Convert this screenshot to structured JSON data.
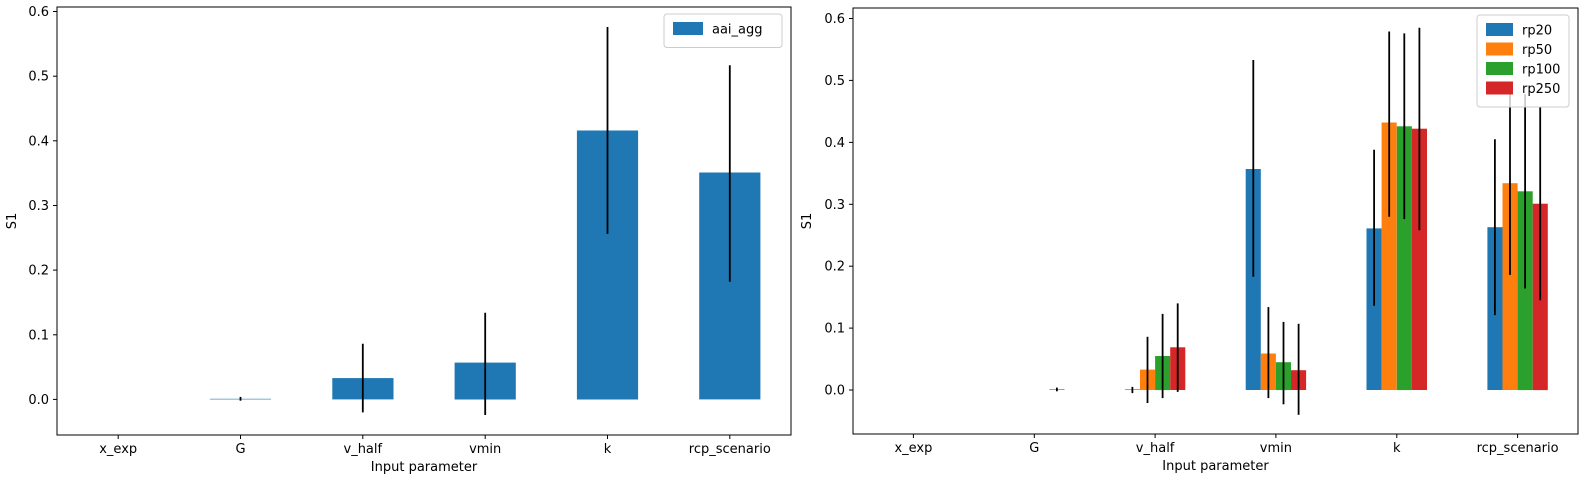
{
  "figure": {
    "background": "#ffffff"
  },
  "chart_data": [
    {
      "type": "bar",
      "title": "",
      "xlabel": "Input parameter",
      "ylabel": "S1",
      "categories": [
        "x_exp",
        "G",
        "v_half",
        "vmin",
        "k",
        "rcp_scenario"
      ],
      "yticks": [
        "0.0",
        "0.1",
        "0.2",
        "0.3",
        "0.4",
        "0.5",
        "0.6"
      ],
      "ylim": [
        -0.055,
        0.607
      ],
      "grid": false,
      "legend_position": "upper right",
      "error_bar_color": "#000000",
      "series": [
        {
          "name": "aai_agg",
          "color": "#1f77b4",
          "values": [
            0.0,
            0.001,
            0.033,
            0.057,
            0.416,
            0.351
          ],
          "err_low": [
            0.0,
            -0.002,
            -0.02,
            -0.024,
            0.256,
            0.182
          ],
          "err_high": [
            0.0,
            0.004,
            0.086,
            0.134,
            0.576,
            0.517
          ]
        }
      ]
    },
    {
      "type": "bar",
      "title": "",
      "xlabel": "Input parameter",
      "ylabel": "S1",
      "categories": [
        "x_exp",
        "G",
        "v_half",
        "vmin",
        "k",
        "rcp_scenario"
      ],
      "yticks": [
        "0.0",
        "0.1",
        "0.2",
        "0.3",
        "0.4",
        "0.5",
        "0.6"
      ],
      "ylim": [
        -0.071,
        0.617
      ],
      "grid": false,
      "legend_position": "upper right",
      "error_bar_color": "#000000",
      "series": [
        {
          "name": "rp20",
          "color": "#1f77b4",
          "values": [
            0.0,
            0.0,
            0.001,
            0.357,
            0.261,
            0.263
          ],
          "err_low": [
            0.0,
            0.0,
            -0.005,
            0.183,
            0.136,
            0.121
          ],
          "err_high": [
            0.0,
            0.0,
            0.005,
            0.533,
            0.388,
            0.405
          ]
        },
        {
          "name": "rp50",
          "color": "#ff7f0e",
          "values": [
            0.0,
            0.0,
            0.033,
            0.059,
            0.432,
            0.334
          ],
          "err_low": [
            0.0,
            0.0,
            -0.021,
            -0.013,
            0.28,
            0.186
          ],
          "err_high": [
            0.0,
            0.0,
            0.086,
            0.134,
            0.579,
            0.482
          ]
        },
        {
          "name": "rp100",
          "color": "#2ca02c",
          "values": [
            0.0,
            0.0,
            0.055,
            0.045,
            0.426,
            0.321
          ],
          "err_low": [
            0.0,
            0.0,
            -0.013,
            -0.023,
            0.276,
            0.164
          ],
          "err_high": [
            0.0,
            0.0,
            0.123,
            0.11,
            0.576,
            0.478
          ]
        },
        {
          "name": "rp250",
          "color": "#d62728",
          "values": [
            0.0,
            0.001,
            0.069,
            0.032,
            0.422,
            0.301
          ],
          "err_low": [
            0.0,
            -0.002,
            -0.003,
            -0.04,
            0.258,
            0.145
          ],
          "err_high": [
            0.0,
            0.004,
            0.14,
            0.107,
            0.585,
            0.457
          ]
        }
      ]
    }
  ]
}
